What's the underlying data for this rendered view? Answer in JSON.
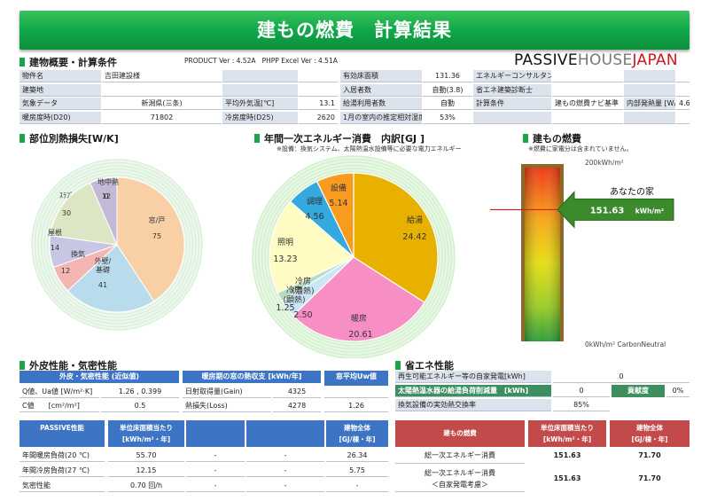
{
  "title": "建もの燃費　計算結果",
  "logo": {
    "passive": "PASSIVE",
    "house": "HOUSE",
    "japan": "JAPAN"
  },
  "overview": {
    "heading": "建物概要・計算条件",
    "version": "PRODUCT Ver : 4.52A   PHPP Excel Ver : 4.51A",
    "rows": [
      [
        "物件名",
        "吉田建設様",
        "",
        "",
        "有効床面積",
        "131.36",
        "エネルギーコンサルタント",
        "",
        "",
        ""
      ],
      [
        "建築地",
        "",
        "",
        "",
        "入居者数",
        "自動(3.8)",
        "省エネ建築診断士",
        "",
        "",
        ""
      ],
      [
        "気象データ",
        "新潟県(三条)",
        "平均外気温[℃]",
        "13.1",
        "給湯利用者数",
        "自動",
        "計算条件",
        "建もの燃費ナビ基準",
        "内部発熱量 [W/m²]",
        "4.6"
      ],
      [
        "暖房度時(D20)",
        "71802",
        "冷房度時(D25)",
        "2620",
        "1月の室内の推定相対湿度",
        "53%",
        "",
        "",
        "",
        ""
      ]
    ]
  },
  "heatloss": {
    "heading": "部位別熱損失[W/K]",
    "slices": [
      {
        "label": "窓/戸",
        "value": 75,
        "color": "#f9cfa6"
      },
      {
        "label": "外壁/\n基礎",
        "value": 41,
        "color": "#b8dceb"
      },
      {
        "label": "換気",
        "value": 12,
        "color": "#f4b6b2"
      },
      {
        "label": "屋根",
        "value": 14,
        "color": "#c7c6e3"
      },
      {
        "label": "ｽﾗﾌﾞ",
        "value": 30,
        "color": "#dde6c4"
      },
      {
        "label": "地中熱",
        "value": 12,
        "color": "#c3b9d6"
      },
      {
        "label": "",
        "value": 0,
        "color": "#ffffff"
      }
    ]
  },
  "energy": {
    "heading": "年間一次エネルギー消費　内訳[GJ ]",
    "note": "※設備：換気システム、太陽熱温水設備等に必要な電力エネルギー",
    "slices": [
      {
        "label": "給湯",
        "value": 24.42,
        "color": "#e8b100"
      },
      {
        "label": "暖房",
        "value": 20.61,
        "color": "#f78fc4"
      },
      {
        "label": "冷房\n(潜熱)",
        "value": 2.5,
        "color": "#c9e6f6"
      },
      {
        "label": "冷房\n(顕熱)",
        "value": 1.25,
        "color": "#b7dcc0"
      },
      {
        "label": "照明",
        "value": 13.23,
        "color": "#fffcc3"
      },
      {
        "label": "調理",
        "value": 4.56,
        "color": "#33a9e0"
      },
      {
        "label": "設備",
        "value": 5.14,
        "color": "#f89b20"
      }
    ]
  },
  "fuel": {
    "heading": "建もの燃費",
    "note": "※燃費に家電分は含まれていません。",
    "top_label": "200kWh/m²",
    "bottom_label": "0kWh/m² CarbonNeutral",
    "your_house": "あなたの家",
    "value": "151.63",
    "unit": "kWh/m²",
    "fraction": 0.758
  },
  "envelope": {
    "heading": "外皮性能・気密性能",
    "col1": "外皮・気密性能 (近似値)",
    "col2": "暖房期の窓の熱収支 [kWh/年]",
    "col3": "窓平均Uw値",
    "col3b": "[W/m²K]",
    "rows": [
      [
        "Q値、Ua値 [W/m²·K]",
        "1.26 , 0.399",
        "日射取得量(Gain)",
        "4325",
        ""
      ],
      [
        "C値　　[cm²/m²]",
        "0.5",
        "熱損失(Loss)",
        "4278",
        "1.26"
      ]
    ],
    "perf_header": [
      "PASSIVE性能",
      "単位床面積当たり\n[kWh/m²・年]",
      "",
      "",
      "建物全体\n[GJ/棟・年]"
    ],
    "perf_rows": [
      [
        "年間暖房負荷(20 ℃)",
        "55.70",
        "-",
        "-",
        "26.34"
      ],
      [
        "年間冷房負荷(27 ℃)",
        "12.15",
        "-",
        "-",
        "5.75"
      ],
      [
        "気密性能",
        "0.70 回/h",
        "-",
        "-",
        "-"
      ]
    ]
  },
  "saving": {
    "heading": "省エネ性能",
    "rows": [
      [
        "再生可能エネルギー等の自家発電[kWh]",
        "0",
        "",
        ""
      ],
      [
        "太陽熱温水器の給湯負荷削減量　[kWh]",
        "0",
        "貢献度",
        "0%"
      ],
      [
        "換気設備の実効熱交換率",
        "85%",
        "",
        ""
      ]
    ],
    "header": [
      "建もの燃費",
      "単位床面積当たり\n[kWh/m²・年]",
      "建物全体\n[GJ/棟・年]"
    ],
    "result_rows": [
      [
        "総一次エネルギー消費",
        "151.63",
        "71.70"
      ],
      [
        "総一次エネルギー消費\n＜自家発電考慮＞",
        "151.63",
        "71.70"
      ]
    ]
  },
  "colors": {
    "accent": "#1fa34a",
    "header_blue": "#3d74c4",
    "header_red": "#c24a4a"
  }
}
